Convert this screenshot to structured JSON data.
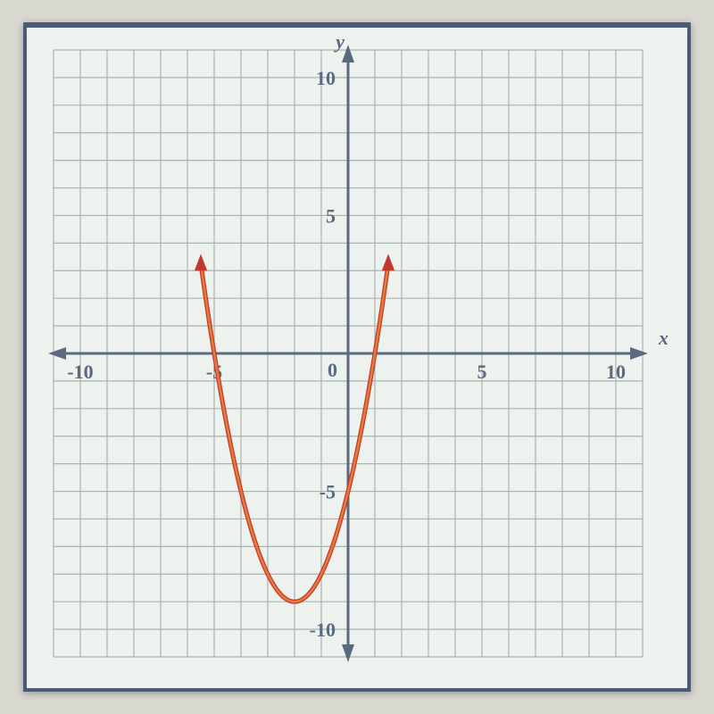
{
  "chart": {
    "type": "parabola",
    "xlim": [
      -11,
      11
    ],
    "ylim": [
      -11,
      11
    ],
    "xtick_step": 1,
    "ytick_step": 1,
    "xtick_labels": [
      -10,
      -5,
      5,
      10
    ],
    "ytick_labels": [
      -10,
      -5,
      5,
      10
    ],
    "origin_label": "0",
    "x_axis_label": "x",
    "y_axis_label": "y",
    "tick_fontsize": 22,
    "axis_label_fontsize": 22,
    "background_color": "#eef2ee",
    "major_grid_color": "#a8b4b0",
    "minor_grid_color": "#d0d8d4",
    "axis_color": "#5a6a80",
    "curve_color_outer": "#c23a2e",
    "curve_color_inner": "#e87a3a",
    "curve_width_outer": 5,
    "curve_width_inner": 2.5,
    "parabola": {
      "vertex_x": -2,
      "vertex_y": -9,
      "a": 1.0,
      "x_range": [
        -5.5,
        1.5
      ]
    },
    "frame_border_color": "#4a5a7a",
    "page_background": "#d8d8d0"
  }
}
